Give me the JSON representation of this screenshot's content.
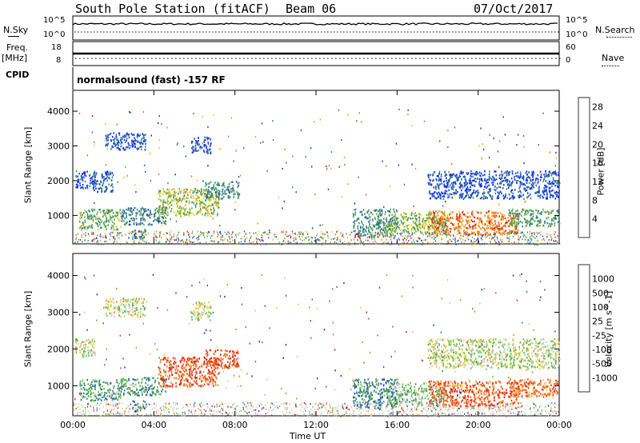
{
  "header": {
    "station": "South Pole Station (fitACF)",
    "beam": "Beam 06",
    "date": "07/Oct/2017"
  },
  "left_labels": {
    "nsky": "N.Sky",
    "freq": "Freq.",
    "freq_unit": "[MHz]",
    "cpid": "CPID"
  },
  "right_labels": {
    "nsearch": "N.Search",
    "nave": "Nave"
  },
  "noise_axis": {
    "left_top": "10^5",
    "left_bottom": "10^0",
    "right_top": "10^5",
    "right_bottom": "10^0"
  },
  "freq_axis": {
    "left_top": "18",
    "left_bottom": "8",
    "right_top": "60",
    "right_bottom": "0"
  },
  "cpid_text": "normalsound (fast) -157 RF",
  "chart_data": [
    {
      "type": "heatmap",
      "title": "",
      "xlabel": "Time UT",
      "ylabel": "Slant Range [km]",
      "x_ticks": [
        "00:00",
        "04:00",
        "08:00",
        "12:00",
        "16:00",
        "20:00",
        "00:00"
      ],
      "y_ticks": [
        1000,
        2000,
        3000,
        4000
      ],
      "ylim": [
        180,
        4600
      ],
      "colorbar": {
        "label": "Power [dB]",
        "ticks": [
          4,
          8,
          12,
          16,
          20,
          24,
          28
        ],
        "range": [
          0,
          30
        ],
        "colors": [
          "#1030f0",
          "#2050b0",
          "#3a80a0",
          "#3f8f5f",
          "#6ab04a",
          "#d8d020",
          "#f5a020",
          "#f07010",
          "#e02010"
        ]
      },
      "patches": [
        {
          "t0": 0.3,
          "t1": 2.4,
          "r0": 600,
          "r1": 1200,
          "level": 0.45
        },
        {
          "t0": 1.0,
          "t1": 2.0,
          "r0": 1700,
          "r1": 2300,
          "level": 0.2
        },
        {
          "t0": 2.4,
          "t1": 4.6,
          "r0": 750,
          "r1": 1250,
          "level": 0.3
        },
        {
          "t0": 2.9,
          "t1": 3.6,
          "r0": 320,
          "r1": 620,
          "level": 0.35
        },
        {
          "t0": 4.2,
          "t1": 7.2,
          "r0": 1000,
          "r1": 1800,
          "level": 0.55
        },
        {
          "t0": 6.5,
          "t1": 8.2,
          "r0": 1500,
          "r1": 2000,
          "level": 0.35
        },
        {
          "t0": 0.1,
          "t1": 1.1,
          "r0": 1800,
          "r1": 2300,
          "level": 0.15
        },
        {
          "t0": 1.6,
          "t1": 3.6,
          "r0": 2900,
          "r1": 3400,
          "level": 0.15
        },
        {
          "t0": 5.8,
          "t1": 6.8,
          "r0": 2800,
          "r1": 3300,
          "level": 0.15
        },
        {
          "t0": 13.8,
          "t1": 16.0,
          "r0": 400,
          "r1": 1200,
          "level": 0.35
        },
        {
          "t0": 15.5,
          "t1": 18.5,
          "r0": 500,
          "r1": 1100,
          "level": 0.5
        },
        {
          "t0": 17.5,
          "t1": 22.0,
          "r0": 450,
          "r1": 1150,
          "level": 0.8
        },
        {
          "t0": 21.5,
          "t1": 24.0,
          "r0": 700,
          "r1": 1200,
          "level": 0.4
        },
        {
          "t0": 17.5,
          "t1": 24.0,
          "r0": 1500,
          "r1": 2300,
          "level": 0.15
        }
      ]
    },
    {
      "type": "heatmap",
      "title": "",
      "xlabel": "Time UT",
      "ylabel": "Slant Range [km]",
      "x_ticks": [
        "00:00",
        "04:00",
        "08:00",
        "12:00",
        "16:00",
        "20:00",
        "00:00"
      ],
      "y_ticks": [
        1000,
        2000,
        3000,
        4000
      ],
      "ylim": [
        180,
        4600
      ],
      "colorbar": {
        "label": "Velocity [m s^-1]",
        "ticks": [
          "1000",
          "500",
          "100",
          "25",
          "-25",
          "-100",
          "-500",
          "-1000"
        ],
        "colors": [
          "#1030d0",
          "#2f68b0",
          "#3a8a6a",
          "#5ac040",
          "#c8c8c0",
          "#f0c840",
          "#f08020",
          "#f05010",
          "#e02010"
        ]
      },
      "patches": [
        {
          "t0": 0.3,
          "t1": 2.4,
          "r0": 600,
          "r1": 1200,
          "level": 0.3
        },
        {
          "t0": 0.1,
          "t1": 1.1,
          "r0": 1800,
          "r1": 2300,
          "level": 0.5
        },
        {
          "t0": 2.4,
          "t1": 4.6,
          "r0": 750,
          "r1": 1250,
          "level": 0.3
        },
        {
          "t0": 2.9,
          "t1": 3.6,
          "r0": 320,
          "r1": 620,
          "level": 0.25
        },
        {
          "t0": 4.2,
          "t1": 7.2,
          "r0": 1000,
          "r1": 1800,
          "level": 0.85
        },
        {
          "t0": 6.5,
          "t1": 8.2,
          "r0": 1500,
          "r1": 2000,
          "level": 0.85
        },
        {
          "t0": 1.6,
          "t1": 3.6,
          "r0": 2900,
          "r1": 3400,
          "level": 0.5
        },
        {
          "t0": 5.8,
          "t1": 6.8,
          "r0": 2800,
          "r1": 3300,
          "level": 0.5
        },
        {
          "t0": 13.8,
          "t1": 16.0,
          "r0": 400,
          "r1": 1200,
          "level": 0.25
        },
        {
          "t0": 15.5,
          "t1": 18.5,
          "r0": 500,
          "r1": 1100,
          "level": 0.4
        },
        {
          "t0": 17.5,
          "t1": 22.0,
          "r0": 450,
          "r1": 1150,
          "level": 0.82
        },
        {
          "t0": 21.5,
          "t1": 24.0,
          "r0": 700,
          "r1": 1200,
          "level": 0.75
        },
        {
          "t0": 17.5,
          "t1": 24.0,
          "r0": 1500,
          "r1": 2300,
          "level": 0.5
        }
      ]
    }
  ]
}
